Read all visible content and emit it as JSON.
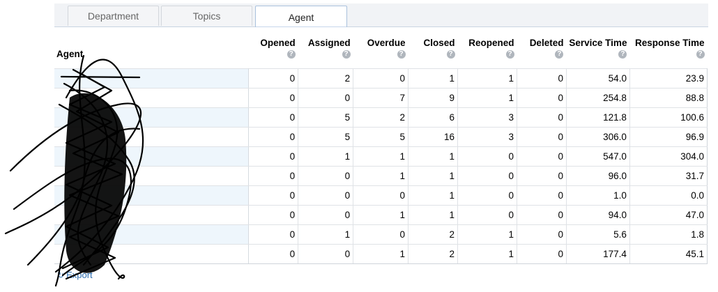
{
  "tabs": [
    {
      "label": "Department",
      "active": false
    },
    {
      "label": "Topics",
      "active": false
    },
    {
      "label": "Agent",
      "active": true
    }
  ],
  "table": {
    "agent_header": "Agent",
    "help_glyph": "?",
    "columns": [
      "Opened",
      "Assigned",
      "Overdue",
      "Closed",
      "Reopened",
      "Deleted",
      "Service Time",
      "Response Time"
    ],
    "rows": [
      [
        "0",
        "2",
        "0",
        "1",
        "1",
        "0",
        "54.0",
        "23.9"
      ],
      [
        "0",
        "0",
        "7",
        "9",
        "1",
        "0",
        "254.8",
        "88.8"
      ],
      [
        "0",
        "5",
        "2",
        "6",
        "3",
        "0",
        "121.8",
        "100.6"
      ],
      [
        "0",
        "5",
        "5",
        "16",
        "3",
        "0",
        "306.0",
        "96.9"
      ],
      [
        "0",
        "1",
        "1",
        "1",
        "0",
        "0",
        "547.0",
        "304.0"
      ],
      [
        "0",
        "0",
        "1",
        "1",
        "0",
        "0",
        "96.0",
        "31.7"
      ],
      [
        "0",
        "0",
        "0",
        "1",
        "0",
        "0",
        "1.0",
        "0.0"
      ],
      [
        "0",
        "0",
        "1",
        "1",
        "0",
        "0",
        "94.0",
        "47.0"
      ],
      [
        "0",
        "1",
        "0",
        "2",
        "1",
        "0",
        "5.6",
        "1.8"
      ],
      [
        "0",
        "0",
        "1",
        "2",
        "1",
        "0",
        "177.4",
        "45.1"
      ]
    ]
  },
  "export": {
    "label": "Export",
    "icon": "export-icon"
  },
  "colors": {
    "tab_bar": "#f1f3f6",
    "name_cell_alt": "#eef6fc",
    "link": "#2b6cb0",
    "redaction": "#000000"
  }
}
